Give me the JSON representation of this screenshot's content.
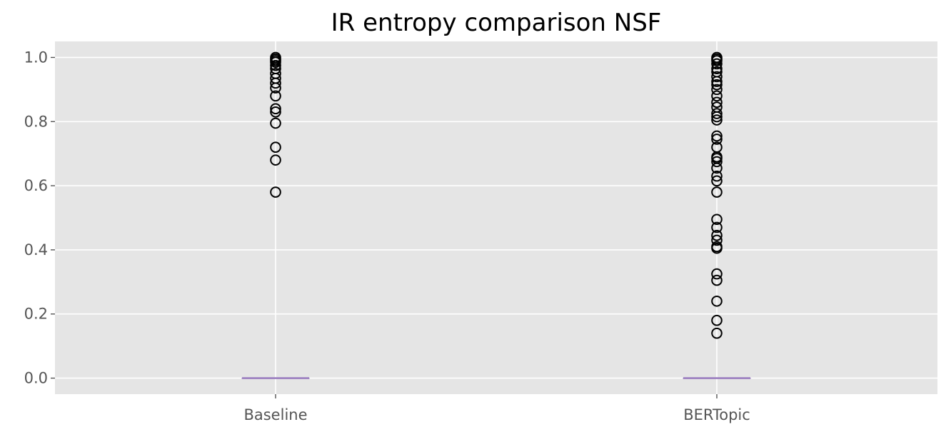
{
  "chart_data": {
    "type": "box",
    "title": "IR entropy comparison NSF",
    "xlabel": "",
    "ylabel": "",
    "categories": [
      "Baseline",
      "BERTopic"
    ],
    "ylim": [
      -0.05,
      1.05
    ],
    "yticks": [
      0.0,
      0.2,
      0.4,
      0.6,
      0.8,
      1.0
    ],
    "ytick_labels": [
      "0.0",
      "0.2",
      "0.4",
      "0.6",
      "0.8",
      "1.0"
    ],
    "grid": true,
    "style": "ggplot",
    "colors": {
      "background": "#e5e5e5",
      "grid": "#ffffff",
      "median": "#9b7fc0",
      "flier": "#000000",
      "tick_text": "#555555"
    },
    "boxes": [
      {
        "category": "Baseline",
        "q1": 0.0,
        "median": 0.0,
        "q3": 0.0,
        "whisker_low": 0.0,
        "whisker_high": 0.0,
        "outliers": [
          0.58,
          0.68,
          0.72,
          0.795,
          0.83,
          0.84,
          0.88,
          0.905,
          0.92,
          0.935,
          0.95,
          0.965,
          0.975,
          0.985,
          0.99,
          0.995,
          1.0
        ]
      },
      {
        "category": "BERTopic",
        "q1": 0.0,
        "median": 0.0,
        "q3": 0.0,
        "whisker_low": 0.0,
        "whisker_high": 0.0,
        "outliers": [
          0.14,
          0.18,
          0.24,
          0.305,
          0.325,
          0.405,
          0.41,
          0.43,
          0.445,
          0.47,
          0.495,
          0.58,
          0.615,
          0.63,
          0.655,
          0.675,
          0.685,
          0.69,
          0.72,
          0.745,
          0.755,
          0.805,
          0.815,
          0.825,
          0.845,
          0.86,
          0.88,
          0.9,
          0.915,
          0.925,
          0.94,
          0.955,
          0.965,
          0.98,
          0.99,
          0.995,
          1.0
        ]
      }
    ]
  }
}
